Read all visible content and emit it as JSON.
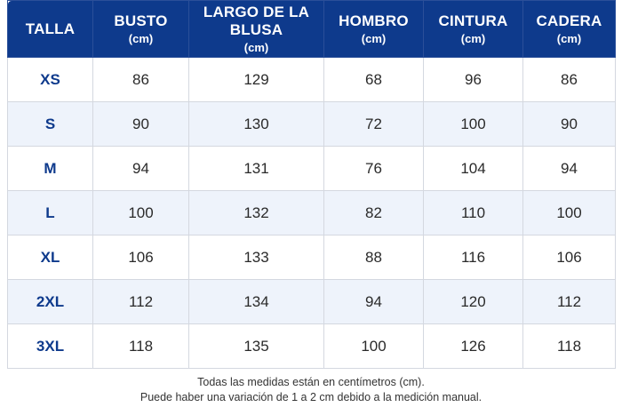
{
  "columns": [
    {
      "title": "TALLA",
      "unit": ""
    },
    {
      "title": "BUSTO",
      "unit": "(cm)"
    },
    {
      "title": "LARGO DE LA BLUSA",
      "unit": "(cm)"
    },
    {
      "title": "HOMBRO",
      "unit": "(cm)"
    },
    {
      "title": "CINTURA",
      "unit": "(cm)"
    },
    {
      "title": "CADERA",
      "unit": "(cm)"
    }
  ],
  "rows": [
    {
      "size": "XS",
      "busto": "86",
      "largo": "129",
      "hombro": "68",
      "cintura": "96",
      "cadera": "86"
    },
    {
      "size": "S",
      "busto": "90",
      "largo": "130",
      "hombro": "72",
      "cintura": "100",
      "cadera": "90"
    },
    {
      "size": "M",
      "busto": "94",
      "largo": "131",
      "hombro": "76",
      "cintura": "104",
      "cadera": "94"
    },
    {
      "size": "L",
      "busto": "100",
      "largo": "132",
      "hombro": "82",
      "cintura": "110",
      "cadera": "100"
    },
    {
      "size": "XL",
      "busto": "106",
      "largo": "133",
      "hombro": "88",
      "cintura": "116",
      "cadera": "106"
    },
    {
      "size": "2XL",
      "busto": "112",
      "largo": "134",
      "hombro": "94",
      "cintura": "120",
      "cadera": "112"
    },
    {
      "size": "3XL",
      "busto": "118",
      "largo": "135",
      "hombro": "100",
      "cintura": "126",
      "cadera": "118"
    }
  ],
  "footnote": {
    "line1": "Todas las medidas están en centímetros (cm).",
    "line2": "Puede haber una variación de 1 a 2 cm debido a la medición manual."
  },
  "colors": {
    "header_bg": "#0e3a8c",
    "header_text": "#ffffff",
    "size_label": "#0e3a8c",
    "stripe_bg": "#eef3fb",
    "border": "#d4d8e0"
  }
}
